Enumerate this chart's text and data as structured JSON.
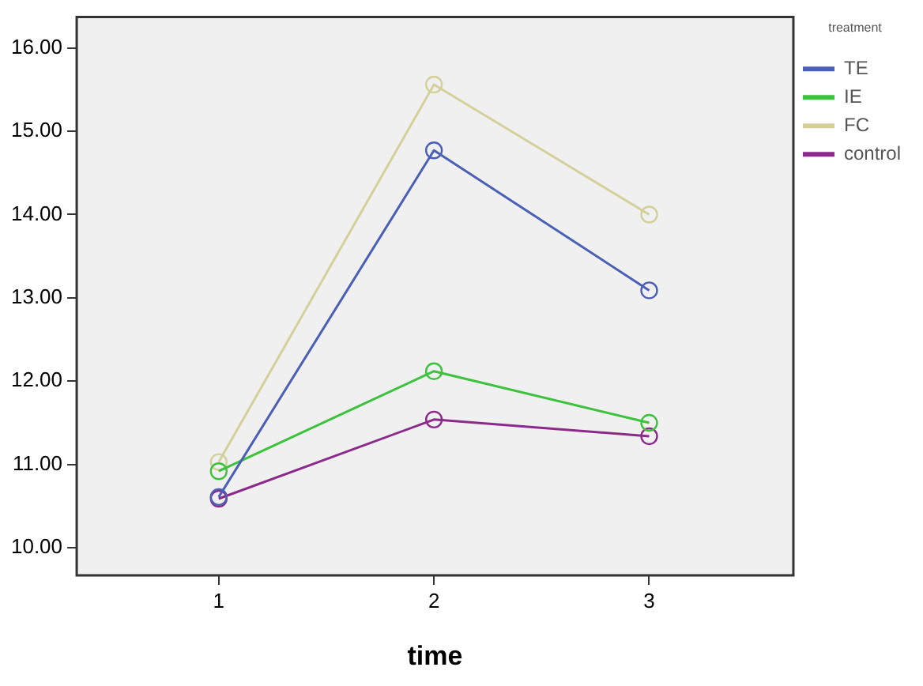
{
  "chart_data": {
    "type": "line",
    "xlabel": "time",
    "legend_title": "treatment",
    "x": [
      1,
      2,
      3
    ],
    "series": [
      {
        "name": "TE",
        "color": "#4a5fb5",
        "values": [
          10.61,
          14.77,
          13.09
        ]
      },
      {
        "name": "IE",
        "color": "#3cc23c",
        "values": [
          10.92,
          12.12,
          11.5
        ]
      },
      {
        "name": "FC",
        "color": "#d4d09a",
        "values": [
          11.03,
          15.56,
          14.0
        ]
      },
      {
        "name": "control",
        "color": "#8b2a8b",
        "values": [
          10.59,
          11.54,
          11.34
        ]
      }
    ],
    "xlim": [
      0.34,
      3.67
    ],
    "xticks": [
      1,
      2,
      3
    ],
    "ylim": [
      9.67,
      16.37
    ],
    "yticks": [
      {
        "value": 10,
        "label": "10.00"
      },
      {
        "value": 11,
        "label": "11.00"
      },
      {
        "value": 12,
        "label": "12.00"
      },
      {
        "value": 13,
        "label": "13.00"
      },
      {
        "value": 14,
        "label": "14.00"
      },
      {
        "value": 15,
        "label": "15.00"
      },
      {
        "value": 16,
        "label": "16.00"
      }
    ],
    "grid": false,
    "legend": "top right",
    "marker": "circle",
    "line_style": "solid"
  }
}
